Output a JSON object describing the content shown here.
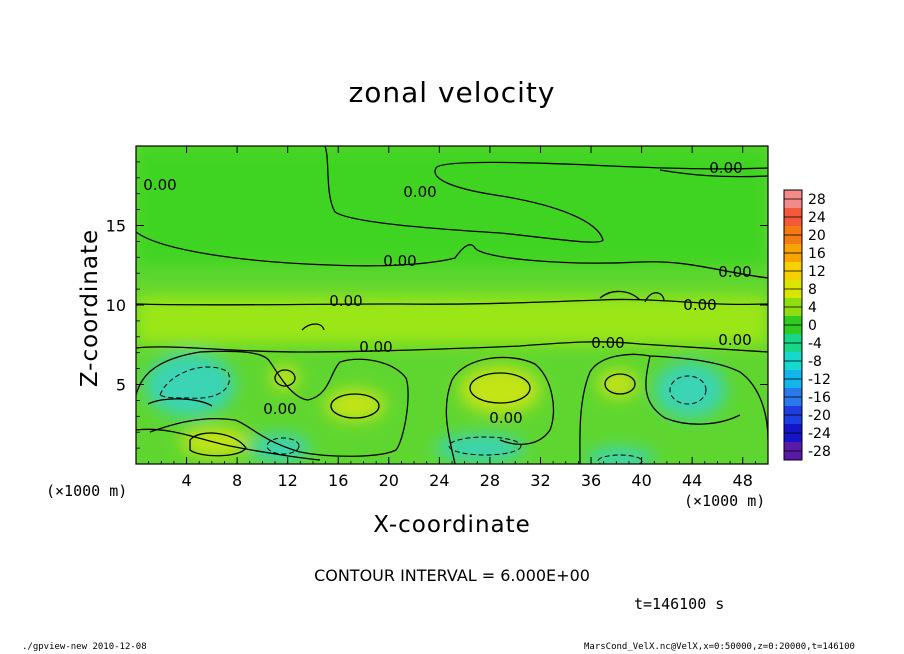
{
  "chart_data": {
    "type": "heatmap",
    "title": "zonal velocity",
    "xlabel": "X-coordinate",
    "ylabel": "Z-coordinate",
    "x_unit": "(×1000 m)",
    "y_unit": "(×1000 m)",
    "xlim": [
      0,
      50
    ],
    "ylim": [
      0,
      20
    ],
    "x_ticks": [
      4,
      8,
      12,
      16,
      20,
      24,
      28,
      32,
      36,
      40,
      44,
      48
    ],
    "y_ticks": [
      5,
      10,
      15
    ],
    "colorbar_levels": [
      28,
      24,
      20,
      16,
      12,
      8,
      4,
      0,
      -4,
      -8,
      -12,
      -16,
      -20,
      -24,
      -28
    ],
    "colorbar_colors": [
      "#f28a8a",
      "#f45a3a",
      "#f47a14",
      "#f8a400",
      "#f7d000",
      "#d9e600",
      "#8fdc10",
      "#2ecc20",
      "#18d688",
      "#16d8cc",
      "#12b6ec",
      "#2a78ec",
      "#1e3ee4",
      "#1414c8",
      "#5a1aa8"
    ],
    "contour_interval": "CONTOUR INTERVAL = 6.000E+00",
    "contour_labels": [
      "0.00",
      "0.00",
      "0.00",
      "0.00",
      "0.00",
      "0.00",
      "0.00",
      "0.00",
      "0.00",
      "0.00",
      "0.00",
      "0.00"
    ],
    "time_label": "t=146100 s",
    "footer_left": "./gpview-new  2010-12-08",
    "footer_right": "MarsCond_VelX.nc@VelX,x=0:50000,z=0:20000,t=146100",
    "colors": {
      "background_field": "#5fd630",
      "upper_field": "#3fd424",
      "band": "#9be614",
      "positive_patch": "#c4e414",
      "negative_patch": "#3ad4b4"
    }
  }
}
